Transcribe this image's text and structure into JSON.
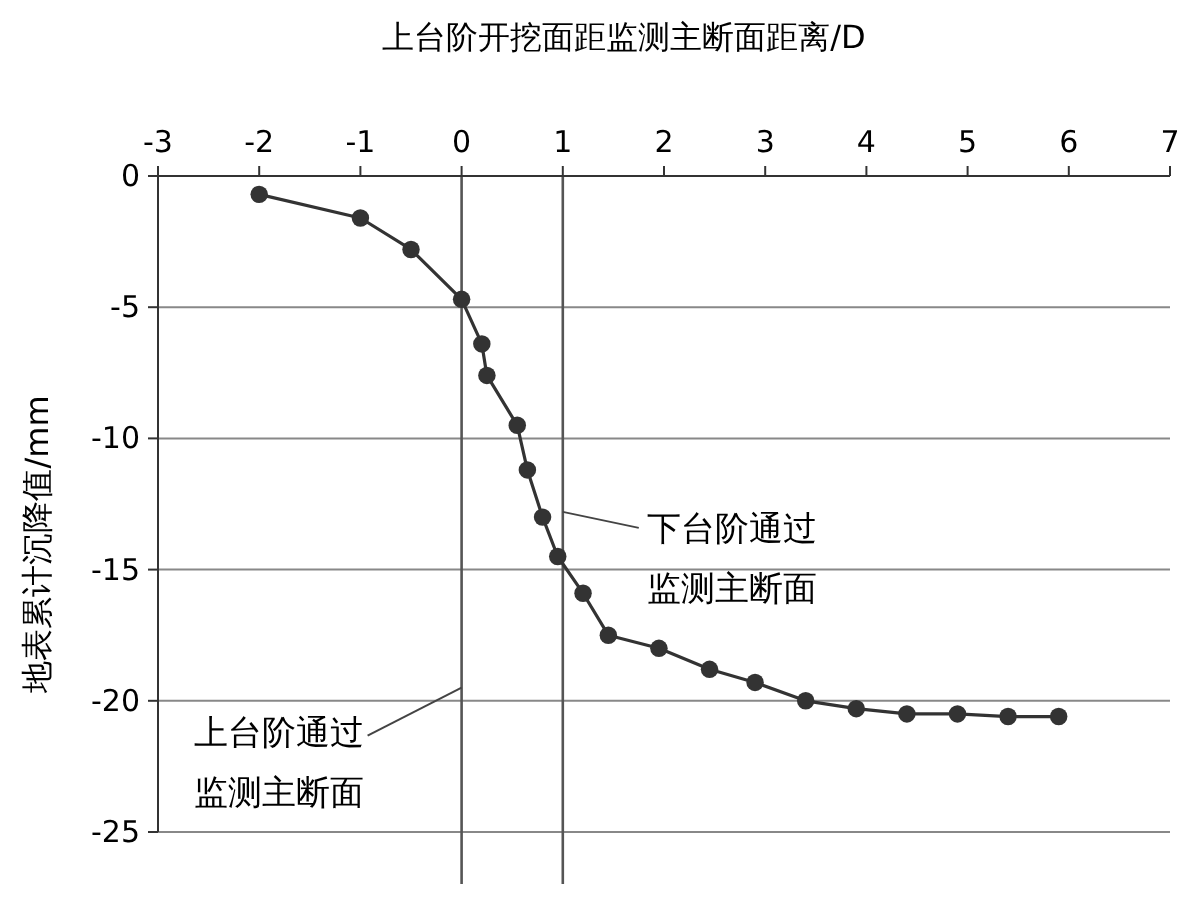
{
  "chart_data": {
    "type": "line",
    "xlabel": "上台阶开挖面距监测主断面距离/D",
    "ylabel": "地表累计沉降值/mm",
    "series": [
      {
        "color": "#333333",
        "x": [
          -2,
          -1,
          -0.5,
          0,
          0.2,
          0.25,
          0.55,
          0.65,
          0.8,
          0.95,
          1.2,
          1.45,
          1.95,
          2.45,
          2.9,
          3.4,
          3.9,
          4.4,
          4.9,
          5.4,
          5.9
        ],
        "values": [
          -0.7,
          -1.6,
          -2.8,
          -4.7,
          -6.4,
          -7.6,
          -9.5,
          -11.2,
          -13,
          -14.5,
          -15.9,
          -17.5,
          -18,
          -18.8,
          -19.3,
          -20,
          -20.3,
          -20.5,
          -20.5,
          -20.6,
          -20.6
        ]
      }
    ],
    "xlim": [
      -3,
      7
    ],
    "xticks": [
      -3,
      -2,
      -1,
      0,
      1,
      2,
      3,
      4,
      5,
      6,
      7
    ],
    "ylim": [
      -25,
      0
    ],
    "yticks": [
      0,
      -5,
      -10,
      -15,
      -20,
      -25
    ],
    "grid": "y",
    "marker": "circle",
    "line_style": "solid",
    "ref_lines": [
      {
        "axis": "x",
        "value": 0,
        "color": "#555555"
      },
      {
        "axis": "x",
        "value": 1,
        "color": "#555555"
      }
    ],
    "annotations": [
      {
        "text": "下台阶通过监测主断面",
        "x": 1,
        "y": -12.8
      },
      {
        "text": "上台阶通过监测主断面",
        "x": 0,
        "y": -19.5
      }
    ]
  }
}
